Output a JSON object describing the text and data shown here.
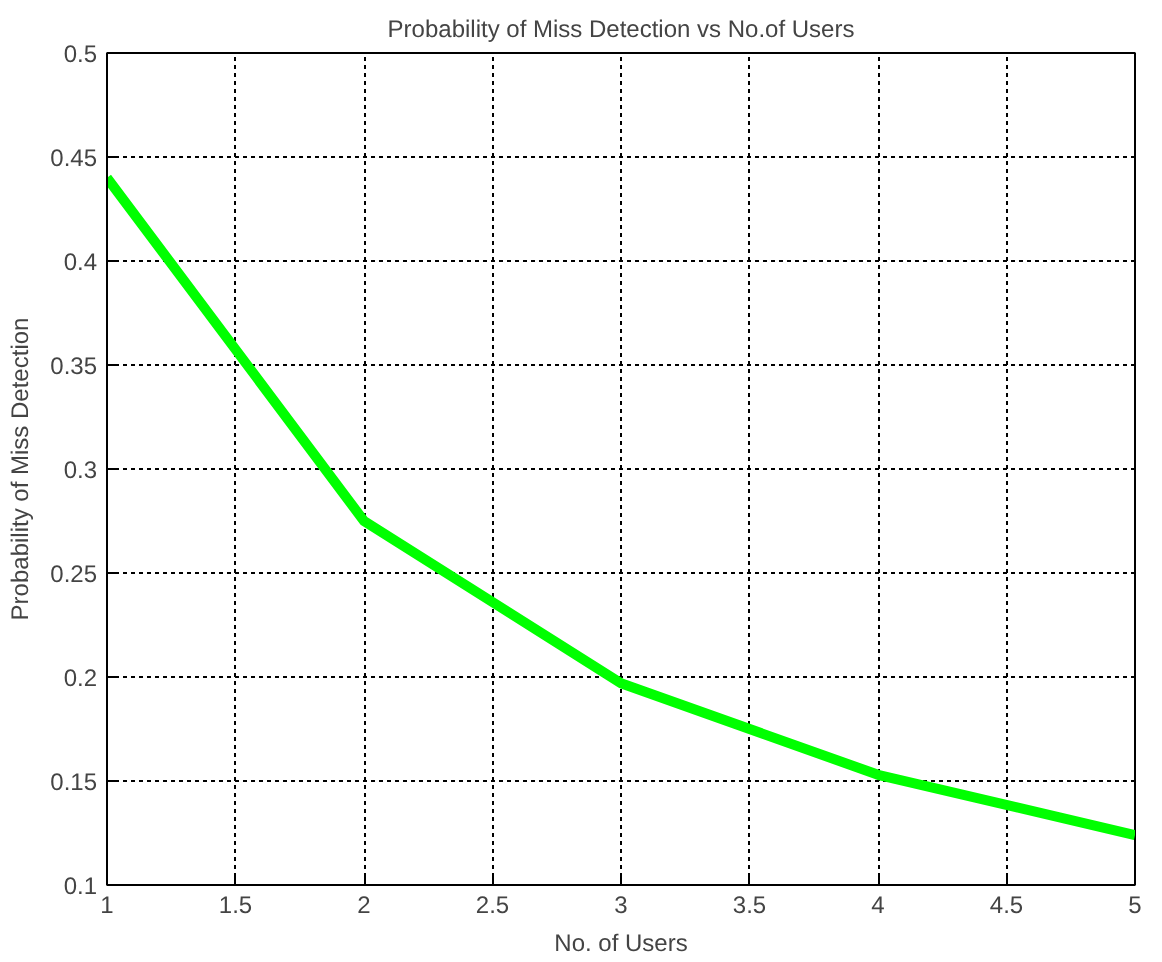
{
  "chart_data": {
    "type": "line",
    "title": "Probability of Miss Detection vs No.of Users",
    "xlabel": "No. of Users",
    "ylabel": "Probability of Miss Detection",
    "x": [
      1,
      2,
      3,
      4,
      5
    ],
    "series": [
      {
        "color": "#00ff00",
        "values": [
          0.44,
          0.275,
          0.197,
          0.153,
          0.124
        ]
      }
    ],
    "xlim": [
      1,
      5
    ],
    "xticks": [
      1,
      1.5,
      2,
      2.5,
      3,
      3.5,
      4,
      4.5,
      5
    ],
    "ylim": [
      0.1,
      0.5
    ],
    "yticks": [
      0.1,
      0.15,
      0.2,
      0.25,
      0.3,
      0.35,
      0.4,
      0.45,
      0.5
    ],
    "grid": true,
    "line_style": "solid",
    "marker": "none"
  }
}
